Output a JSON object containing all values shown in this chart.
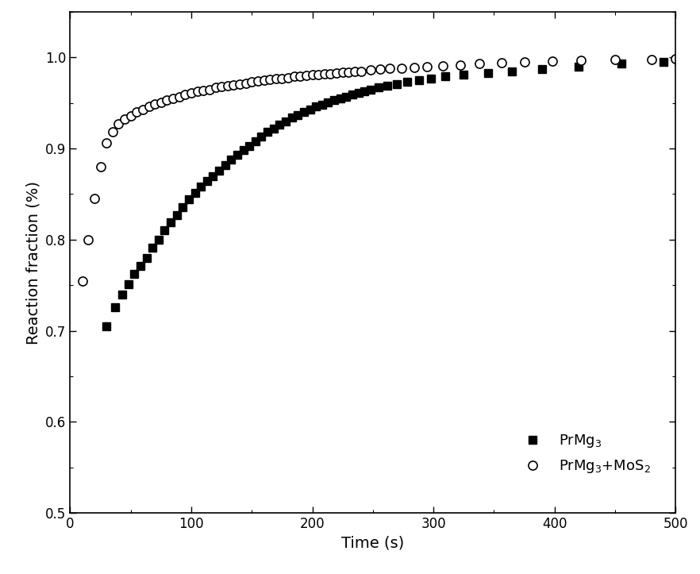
{
  "title": "",
  "xlabel": "Time (s)",
  "ylabel": "Reaction fraction (%)",
  "xlim": [
    0,
    500
  ],
  "ylim": [
    0.5,
    1.05
  ],
  "yticks": [
    0.5,
    0.6,
    0.7,
    0.8,
    0.9,
    1.0
  ],
  "xticks": [
    0,
    100,
    200,
    300,
    400,
    500
  ],
  "legend1": "PrMg$_3$",
  "legend2": "PrMg$_3$+MoS$_2$",
  "series1_x": [
    30,
    37,
    43,
    48,
    53,
    58,
    63,
    68,
    73,
    78,
    83,
    88,
    93,
    98,
    103,
    108,
    113,
    118,
    123,
    128,
    133,
    138,
    143,
    148,
    153,
    158,
    163,
    168,
    173,
    178,
    183,
    188,
    193,
    198,
    203,
    208,
    213,
    218,
    223,
    228,
    233,
    238,
    243,
    248,
    255,
    262,
    270,
    278,
    288,
    298,
    310,
    325,
    345,
    365,
    390,
    420,
    455,
    490
  ],
  "series1_y": [
    0.705,
    0.726,
    0.74,
    0.751,
    0.762,
    0.771,
    0.78,
    0.791,
    0.8,
    0.81,
    0.819,
    0.827,
    0.836,
    0.844,
    0.851,
    0.858,
    0.864,
    0.87,
    0.876,
    0.882,
    0.888,
    0.893,
    0.898,
    0.903,
    0.908,
    0.913,
    0.918,
    0.922,
    0.926,
    0.93,
    0.934,
    0.937,
    0.94,
    0.943,
    0.946,
    0.948,
    0.951,
    0.953,
    0.955,
    0.957,
    0.959,
    0.961,
    0.963,
    0.965,
    0.967,
    0.969,
    0.971,
    0.973,
    0.975,
    0.977,
    0.979,
    0.981,
    0.983,
    0.985,
    0.987,
    0.99,
    0.993,
    0.995
  ],
  "series2_x": [
    10,
    15,
    20,
    25,
    30,
    35,
    40,
    45,
    50,
    55,
    60,
    65,
    70,
    75,
    80,
    85,
    90,
    95,
    100,
    105,
    110,
    115,
    120,
    125,
    130,
    135,
    140,
    145,
    150,
    155,
    160,
    165,
    170,
    175,
    180,
    185,
    190,
    195,
    200,
    205,
    210,
    215,
    220,
    225,
    230,
    235,
    240,
    248,
    256,
    264,
    274,
    284,
    295,
    308,
    322,
    338,
    356,
    375,
    398,
    422,
    450,
    480,
    500
  ],
  "series2_y": [
    0.755,
    0.8,
    0.845,
    0.88,
    0.906,
    0.918,
    0.927,
    0.932,
    0.936,
    0.94,
    0.943,
    0.946,
    0.949,
    0.951,
    0.953,
    0.955,
    0.957,
    0.959,
    0.961,
    0.963,
    0.964,
    0.965,
    0.967,
    0.968,
    0.969,
    0.97,
    0.971,
    0.972,
    0.973,
    0.974,
    0.975,
    0.976,
    0.977,
    0.977,
    0.978,
    0.979,
    0.979,
    0.98,
    0.981,
    0.981,
    0.982,
    0.982,
    0.983,
    0.984,
    0.984,
    0.985,
    0.985,
    0.986,
    0.987,
    0.988,
    0.988,
    0.989,
    0.99,
    0.991,
    0.992,
    0.993,
    0.994,
    0.995,
    0.996,
    0.997,
    0.998,
    0.998,
    0.999
  ],
  "marker1": "s",
  "marker2": "o",
  "color1": "black",
  "color2": "black",
  "markersize1": 7,
  "markersize2": 8,
  "markeredgewidth2": 1.2,
  "background_color": "#ffffff",
  "figwidth": 8.82,
  "figheight": 7.23,
  "dpi": 100,
  "legend_fontsize": 13,
  "axis_fontsize": 14,
  "tick_labelsize": 12
}
